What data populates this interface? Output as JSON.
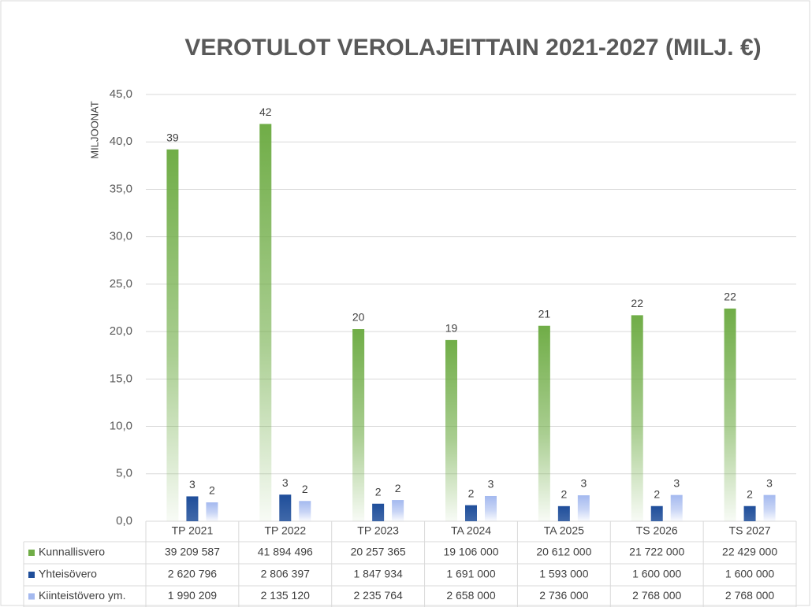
{
  "chart_data": {
    "type": "bar",
    "title": "VEROTULOT VEROLAJEITTAIN 2021-2027 (MILJ. €)",
    "y_label": "MILJOONAT",
    "categories": [
      "TP 2021",
      "TP 2022",
      "TP 2023",
      "TA 2024",
      "TA 2025",
      "TS 2026",
      "TS 2027"
    ],
    "series": [
      {
        "name": "Kunnallisvero",
        "color": "#70ad47",
        "values": [
          39.209587,
          41.894496,
          20.257365,
          19.106,
          20.612,
          21.722,
          22.429
        ],
        "value_labels": [
          "39",
          "42",
          "20",
          "19",
          "21",
          "22",
          "22"
        ],
        "table_labels": [
          "39 209 587",
          "41 894 496",
          "20 257 365",
          "19 106 000",
          "20 612 000",
          "21 722 000",
          "22 429 000"
        ]
      },
      {
        "name": "Yhteisövero",
        "color": "#1f4e9a",
        "values": [
          2.620796,
          2.806397,
          1.847934,
          1.691,
          1.593,
          1.6,
          1.6
        ],
        "value_labels": [
          "3",
          "3",
          "2",
          "2",
          "2",
          "2",
          "2"
        ],
        "table_labels": [
          "2 620 796",
          "2 806 397",
          "1 847 934",
          "1 691 000",
          "1 593 000",
          "1 600 000",
          "1 600 000"
        ]
      },
      {
        "name": "Kiinteistövero ym.",
        "color": "#a4b9ef",
        "values": [
          1.990209,
          2.13512,
          2.235764,
          2.658,
          2.736,
          2.768,
          2.768
        ],
        "value_labels": [
          "2",
          "2",
          "2",
          "3",
          "3",
          "3",
          "3"
        ],
        "table_labels": [
          "1 990 209",
          "2 135 120",
          "2 235 764",
          "2 658 000",
          "2 736 000",
          "2 768 000",
          "2 768 000"
        ]
      }
    ],
    "ylim": [
      0,
      45
    ],
    "yticks": [
      {
        "value": 0,
        "label": "0,0"
      },
      {
        "value": 5,
        "label": "5,0"
      },
      {
        "value": 10,
        "label": "10,0"
      },
      {
        "value": 15,
        "label": "15,0"
      },
      {
        "value": 20,
        "label": "20,0"
      },
      {
        "value": 25,
        "label": "25,0"
      },
      {
        "value": 30,
        "label": "30,0"
      },
      {
        "value": 35,
        "label": "35,0"
      },
      {
        "value": 40,
        "label": "40,0"
      },
      {
        "value": 45,
        "label": "45,0"
      }
    ],
    "grid": true
  }
}
